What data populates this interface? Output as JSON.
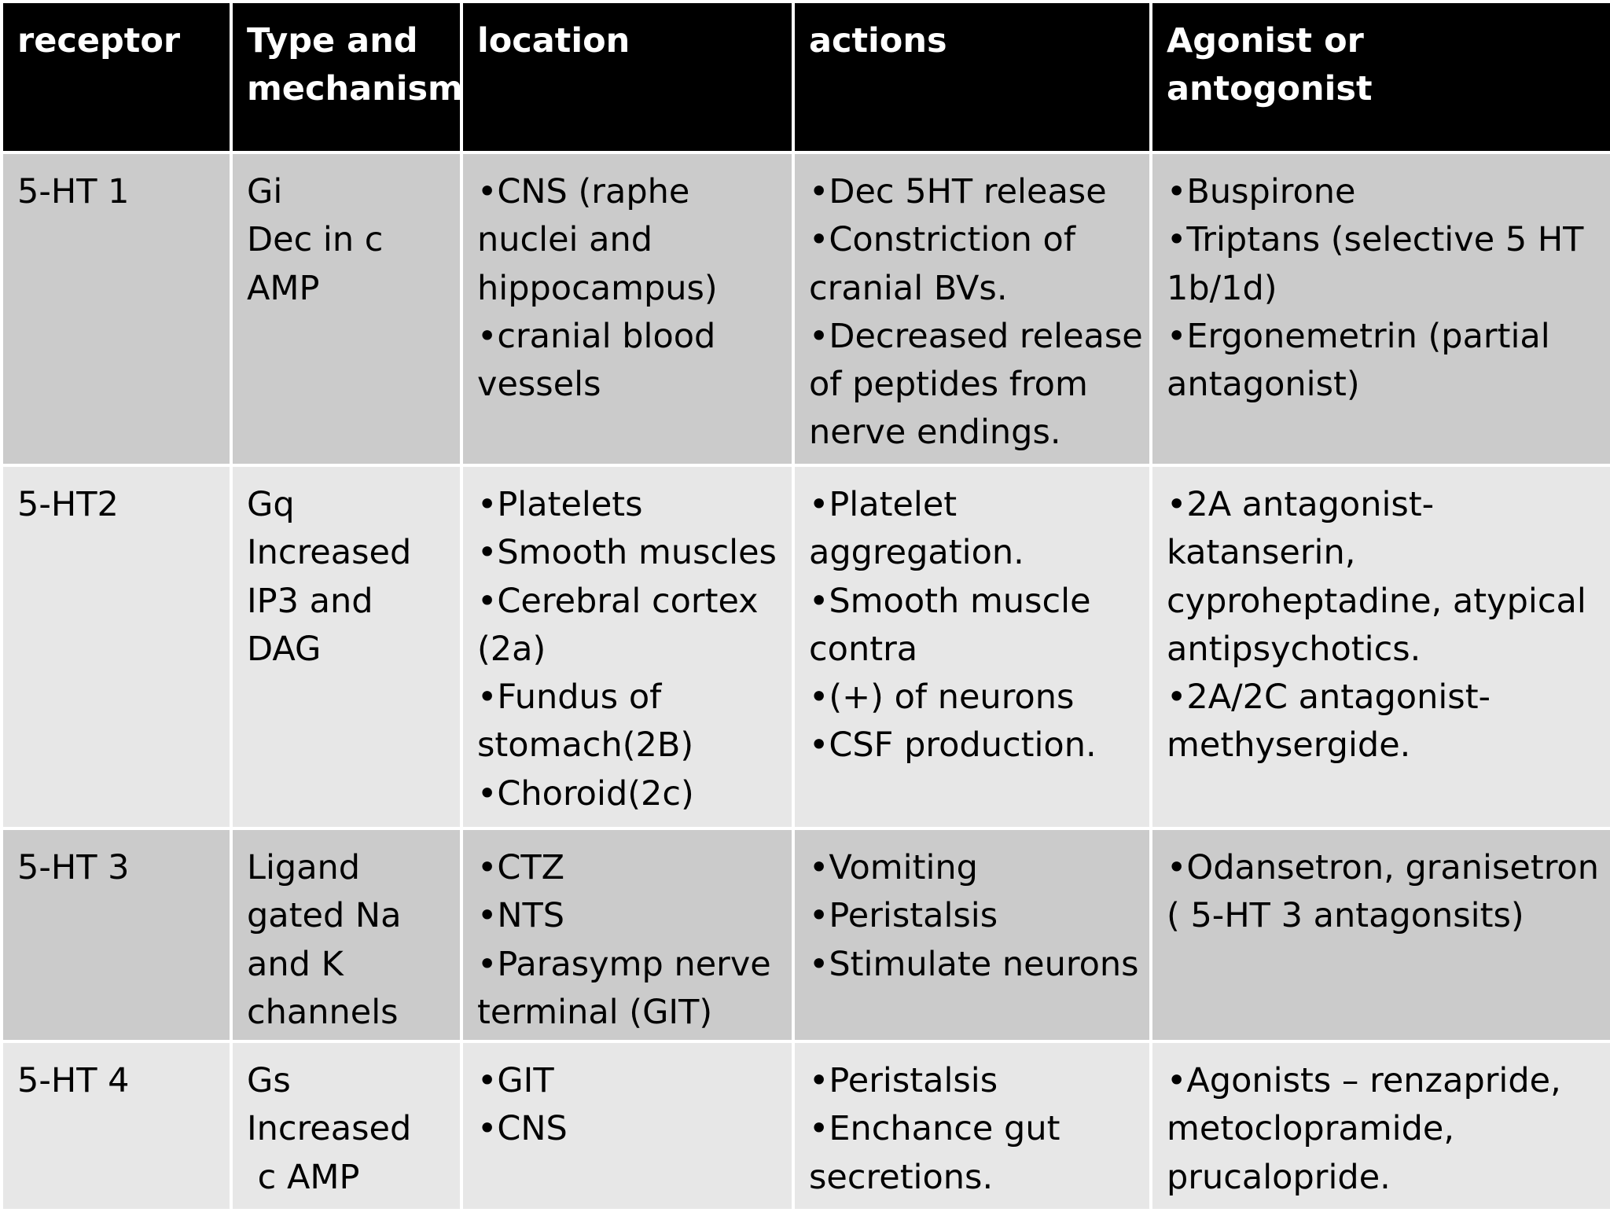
{
  "header": {
    "receptor": "receptor",
    "type_line1": "Type and",
    "type_line2": "mechanism",
    "location": "location",
    "actions": "actions",
    "agonist_line1": "Agonist or",
    "agonist_line2": "antogonist"
  },
  "rows": [
    {
      "receptor": "5-HT 1",
      "type": [
        "Gi",
        "Dec in c",
        "AMP"
      ],
      "location": [
        "•CNS (raphe nuclei and hippocampus)",
        "•cranial blood vessels"
      ],
      "actions": [
        "•Dec 5HT release",
        "•Constriction of cranial BVs.",
        "•Decreased release of peptides from nerve endings."
      ],
      "agonist": [
        "•Buspirone",
        "•Triptans (selective 5 HT 1b/1d)",
        "•Ergonemetrin (partial antagonist)"
      ]
    },
    {
      "receptor": "5-HT2",
      "type": [
        "Gq",
        "Increased",
        "IP3 and",
        "DAG"
      ],
      "location": [
        "•Platelets",
        "•Smooth muscles",
        "•Cerebral cortex (2a)",
        "•Fundus of stomach(2B)",
        "•Choroid(2c)"
      ],
      "actions": [
        "•Platelet aggregation.",
        "•Smooth muscle contra",
        "•(+) of neurons",
        "•CSF production."
      ],
      "agonist": [
        "•2A antagonist- katanserin, cyproheptadine, atypical antipsychotics.",
        "•2A/2C antagonist- methysergide."
      ]
    },
    {
      "receptor": "5-HT 3",
      "type": [
        "Ligand",
        "gated Na",
        "and K",
        "channels"
      ],
      "location": [
        "•CTZ",
        "•NTS",
        "•Parasymp nerve terminal (GIT)"
      ],
      "actions": [
        "•Vomiting",
        "•Peristalsis",
        "•Stimulate neurons"
      ],
      "agonist": [
        "•Odansetron, granisetron ( 5-HT 3 antagonsits)"
      ]
    },
    {
      "receptor": "5-HT 4",
      "type": [
        "Gs",
        "Increased",
        " c AMP"
      ],
      "location": [
        "•GIT",
        "•CNS"
      ],
      "actions": [
        "•Peristalsis",
        "•Enchance gut secretions."
      ],
      "agonist": [
        "•Agonists – renzapride, metoclopramide, prucalopride."
      ]
    }
  ],
  "colors": {
    "header_bg": "#000000",
    "header_text": "#ffffff",
    "row_dark": "#cbcbcb",
    "row_light": "#e7e7e7",
    "border": "#ffffff"
  }
}
